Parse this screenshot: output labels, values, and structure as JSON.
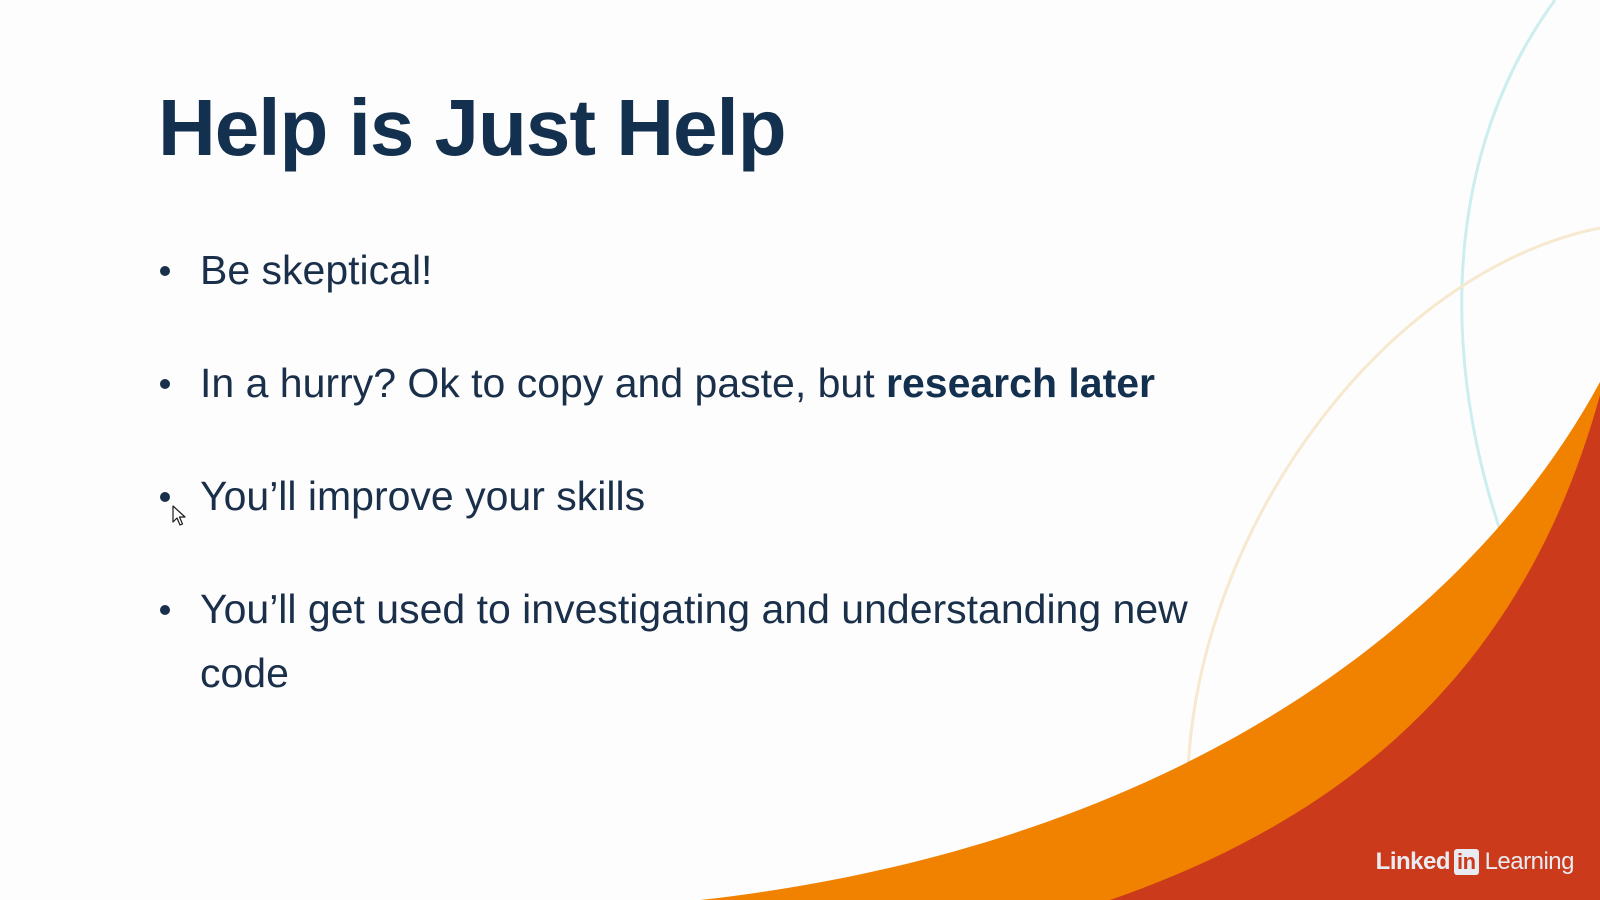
{
  "slide": {
    "title": "Help is Just Help",
    "bullets": [
      {
        "text": "Be skeptical!",
        "emphasis": ""
      },
      {
        "text": "In a hurry? Ok to copy and paste, but ",
        "emphasis": "research later"
      },
      {
        "text": "You’ll improve your skills",
        "emphasis": ""
      },
      {
        "text": "You’ll get used to investigating and understanding new code",
        "emphasis": ""
      }
    ]
  },
  "branding": {
    "logo_linked": "Linked",
    "logo_in": "in",
    "logo_learning": "Learning"
  },
  "colors": {
    "title": "#14304f",
    "text": "#1a2f4a",
    "accent_orange": "#f08000",
    "accent_red": "#cc3a1a",
    "arc_teal": "#c9ecec",
    "arc_cream": "#f7e7c9"
  },
  "icons": [
    "mouse-pointer-icon"
  ]
}
